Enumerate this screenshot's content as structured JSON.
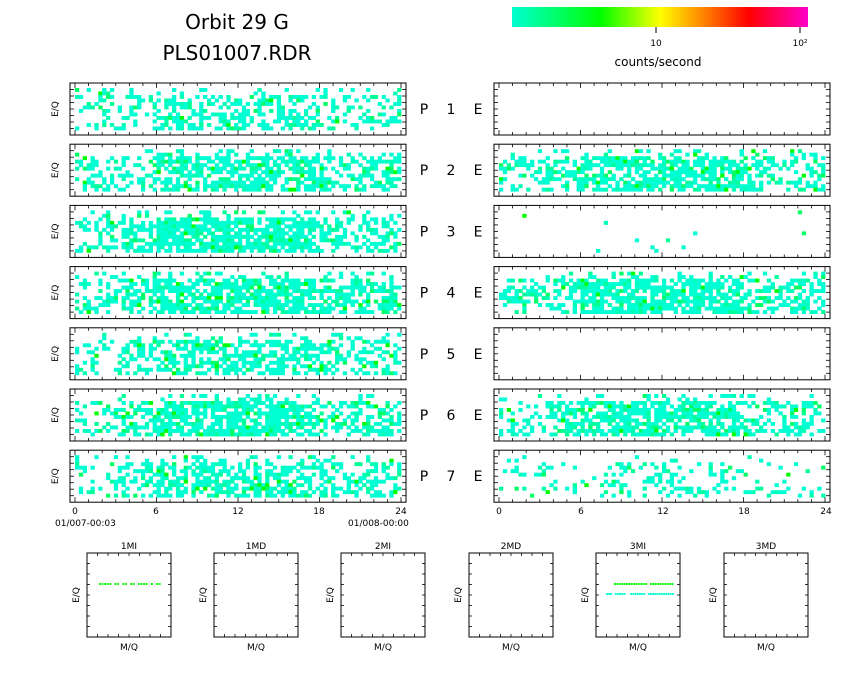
{
  "title": {
    "line1": "Orbit 29 G",
    "line2": "PLS01007.RDR"
  },
  "colorbar": {
    "label": "counts/second",
    "tick_labels": [
      "10",
      "10²"
    ],
    "colors": [
      "#00ffd2",
      "#00ff00",
      "#ffff00",
      "#ff8000",
      "#ff0000",
      "#ff00c8"
    ]
  },
  "chart_data": {
    "type": "heatmap",
    "panel_ylabel": "E/Q",
    "panel_labels": [
      "P",
      "E"
    ],
    "channels": [
      "1",
      "2",
      "3",
      "4",
      "5",
      "6",
      "7"
    ],
    "xaxis": {
      "range": [
        0,
        24
      ],
      "tick_labels": [
        "0",
        "6",
        "12",
        "18",
        "24"
      ],
      "start_label": "01/007-00:03",
      "end_label": "01/008-00:00"
    },
    "p_density": [
      0.42,
      0.55,
      0.65,
      0.6,
      0.45,
      0.58,
      0.5
    ],
    "e_density": [
      0.0,
      0.55,
      0.01,
      0.62,
      0.0,
      0.55,
      0.18
    ],
    "mq_panels": [
      {
        "label": "1MI",
        "xlabel": "M/Q",
        "ylabel": "E/Q",
        "has_data": true
      },
      {
        "label": "1MD",
        "xlabel": "M/Q",
        "ylabel": "E/Q",
        "has_data": false
      },
      {
        "label": "2MI",
        "xlabel": "M/Q",
        "ylabel": "E/Q",
        "has_data": false
      },
      {
        "label": "2MD",
        "xlabel": "M/Q",
        "ylabel": "E/Q",
        "has_data": false
      },
      {
        "label": "3MI",
        "xlabel": "M/Q",
        "ylabel": "E/Q",
        "has_data": true
      },
      {
        "label": "3MD",
        "xlabel": "M/Q",
        "ylabel": "E/Q",
        "has_data": false
      }
    ]
  }
}
